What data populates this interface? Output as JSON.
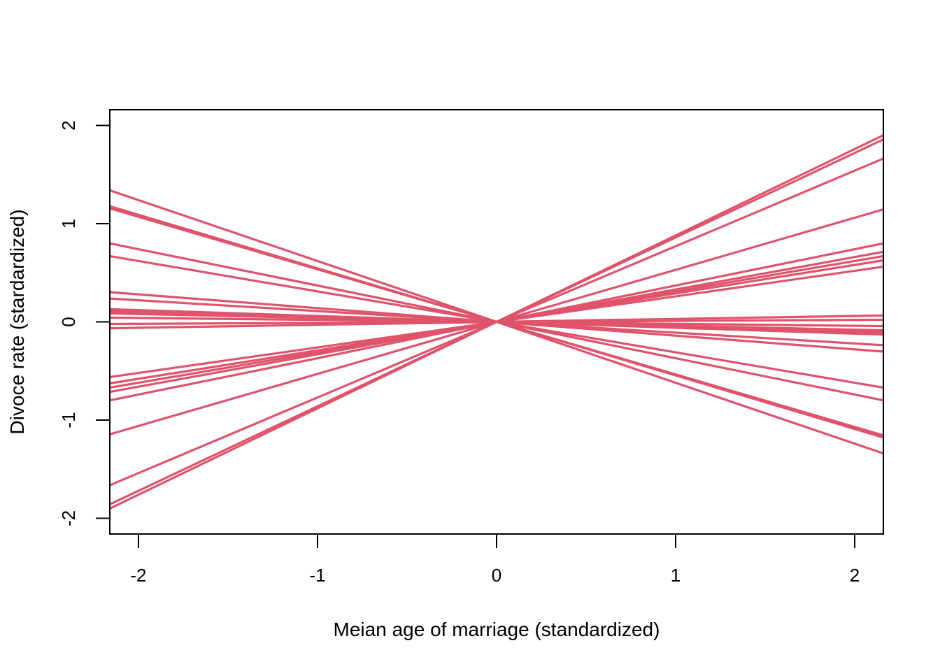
{
  "chart_data": {
    "type": "line",
    "title": "",
    "xlabel": "Meian age of marriage (standardized)",
    "ylabel": "Divoce rate (stardardized)",
    "xlim": [
      -2.16,
      2.16
    ],
    "ylim": [
      -2.16,
      2.16
    ],
    "xticks": [
      -2,
      -1,
      0,
      1,
      2
    ],
    "yticks": [
      -2,
      -1,
      0,
      1,
      2
    ],
    "xtick_labels": [
      "-2",
      "-1",
      "0",
      "1",
      "2"
    ],
    "ytick_labels": [
      "-2",
      "-1",
      "0",
      "1",
      "2"
    ],
    "grid": false,
    "legend": "none",
    "line_color": "#DF536B",
    "x": [
      -2.16,
      2.16
    ],
    "series": [
      {
        "intercept": 0,
        "slope": 0.88
      },
      {
        "intercept": 0,
        "slope": 0.86
      },
      {
        "intercept": 0,
        "slope": 0.77
      },
      {
        "intercept": 0,
        "slope": 0.53
      },
      {
        "intercept": 0,
        "slope": 0.37
      },
      {
        "intercept": 0,
        "slope": 0.33
      },
      {
        "intercept": 0,
        "slope": 0.31
      },
      {
        "intercept": 0,
        "slope": 0.29
      },
      {
        "intercept": 0,
        "slope": 0.26
      },
      {
        "intercept": 0,
        "slope": 0.03
      },
      {
        "intercept": 0,
        "slope": 0.01
      },
      {
        "intercept": 0,
        "slope": -0.02
      },
      {
        "intercept": 0,
        "slope": -0.04
      },
      {
        "intercept": 0,
        "slope": -0.05
      },
      {
        "intercept": 0,
        "slope": -0.06
      },
      {
        "intercept": 0,
        "slope": -0.11
      },
      {
        "intercept": 0,
        "slope": -0.14
      },
      {
        "intercept": 0,
        "slope": -0.31
      },
      {
        "intercept": 0,
        "slope": -0.37
      },
      {
        "intercept": 0,
        "slope": -0.535
      },
      {
        "intercept": 0,
        "slope": -0.545
      },
      {
        "intercept": 0,
        "slope": -0.62
      }
    ]
  }
}
